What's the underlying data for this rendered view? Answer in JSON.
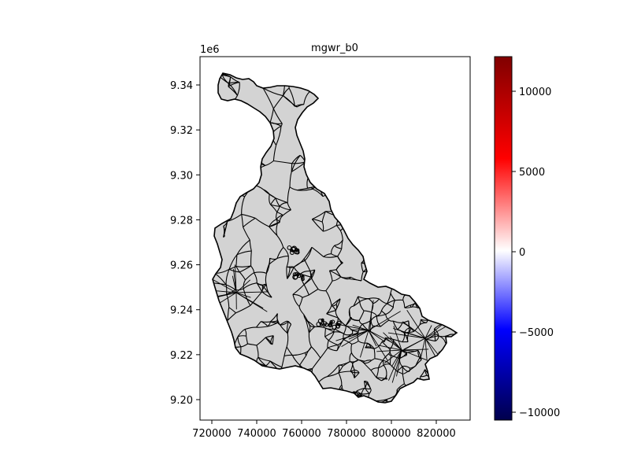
{
  "chart_data": {
    "type": "choropleth",
    "title": "mgwr_b0",
    "fill_color": "#d3d3d3",
    "edge_color": "#000000",
    "x_ticks": [
      "720000",
      "740000",
      "760000",
      "780000",
      "800000",
      "820000"
    ],
    "y_ticks": [
      "9.20",
      "9.22",
      "9.24",
      "9.26",
      "9.28",
      "9.30",
      "9.32",
      "9.34"
    ],
    "y_offset_label": "1e6",
    "xlim": [
      711000,
      831000
    ],
    "ylim": [
      9191000,
      9353000
    ],
    "colorbar": {
      "colormap": "seismic",
      "ticks": [
        "10000",
        "5000",
        "0",
        "−5000",
        "−10000"
      ],
      "range": [
        -10500,
        12000
      ]
    }
  }
}
